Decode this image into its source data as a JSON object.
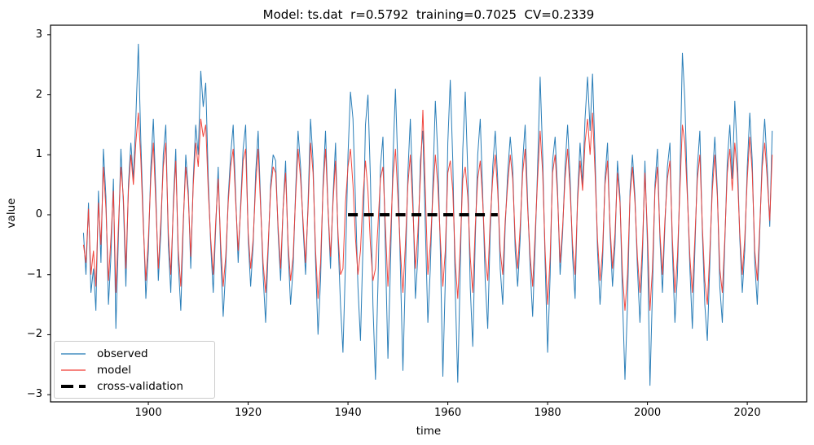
{
  "figure": {
    "title": "Model: ts.dat  r=0.5792  training=0.7025  CV=0.2339",
    "background_color": "#ffffff",
    "frame_color": "#000000"
  },
  "axes": {
    "xlabel": "time",
    "ylabel": "value",
    "xlim": [
      1880.4,
      2031.9
    ],
    "ylim": [
      -3.12,
      3.16
    ],
    "xticks": [
      1900,
      1920,
      1940,
      1960,
      1980,
      2000,
      2020
    ],
    "xtick_labels": [
      "1900",
      "1920",
      "1940",
      "1960",
      "1980",
      "2000",
      "2020"
    ],
    "yticks": [
      3,
      2,
      1,
      0,
      -1,
      -2,
      -3
    ],
    "ytick_labels": [
      "3",
      "2",
      "1",
      "0",
      "−1",
      "−2",
      "−3"
    ],
    "grid": false
  },
  "legend": {
    "position": "lower left",
    "entries": [
      {
        "label": "observed",
        "color": "#1f77b4",
        "style": "solid",
        "width": 1.3
      },
      {
        "label": "model",
        "color": "#f03b33",
        "style": "solid",
        "width": 1.3
      },
      {
        "label": "cross-validation",
        "color": "#000000",
        "style": "dashed",
        "width": 4
      }
    ]
  },
  "chart_data": {
    "type": "line",
    "title": "Model: ts.dat  r=0.5792  training=0.7025  CV=0.2339",
    "xlabel": "time",
    "ylabel": "value",
    "xlim": [
      1880.4,
      2031.9
    ],
    "ylim": [
      -3.12,
      3.16
    ],
    "grid": false,
    "legend_position": "lower left",
    "stats": {
      "r": 0.5792,
      "training": 0.7025,
      "CV": 0.2339,
      "model_file": "ts.dat"
    },
    "x_start": 1887.0,
    "x_step": 0.5,
    "series": [
      {
        "name": "observed",
        "color": "#1f77b4",
        "linewidth": 1,
        "style": "solid",
        "values": [
          -0.3,
          -1.0,
          0.2,
          -1.3,
          -0.9,
          -1.6,
          0.4,
          -0.8,
          1.1,
          0.3,
          -1.5,
          -0.7,
          0.6,
          -1.9,
          -0.4,
          1.1,
          0.2,
          -1.2,
          0.5,
          1.2,
          0.6,
          1.6,
          2.85,
          1.2,
          -0.1,
          -1.4,
          -0.6,
          0.8,
          1.6,
          0.4,
          -1.1,
          -0.3,
          1.0,
          1.5,
          -0.5,
          -1.3,
          0.2,
          1.1,
          -0.8,
          -1.6,
          -0.2,
          1.0,
          0.4,
          -0.9,
          0.6,
          1.5,
          1.0,
          2.4,
          1.8,
          2.2,
          0.6,
          -0.5,
          -1.3,
          -0.2,
          0.8,
          -0.7,
          -1.7,
          -0.9,
          0.3,
          1.0,
          1.5,
          0.3,
          -0.8,
          0.2,
          1.1,
          1.5,
          -0.4,
          -1.2,
          -0.5,
          0.7,
          1.4,
          0.2,
          -1.0,
          -1.8,
          -0.6,
          0.5,
          1.0,
          0.9,
          -0.3,
          -1.1,
          0.1,
          0.9,
          -0.6,
          -1.5,
          -0.9,
          0.4,
          1.4,
          0.8,
          -0.2,
          -1.0,
          0.2,
          1.6,
          0.9,
          -0.8,
          -2.0,
          -1.1,
          0.5,
          1.4,
          0.1,
          -0.9,
          0.3,
          1.2,
          -0.4,
          -1.5,
          -2.3,
          -0.8,
          1.0,
          2.05,
          1.6,
          0.2,
          -1.2,
          -2.1,
          -0.5,
          1.5,
          2.0,
          0.6,
          -1.5,
          -2.75,
          -1.2,
          0.8,
          1.3,
          -0.6,
          -2.4,
          -0.9,
          0.9,
          2.1,
          0.8,
          -0.9,
          -2.6,
          -1.0,
          0.7,
          1.6,
          0.3,
          -1.4,
          -0.7,
          0.9,
          1.4,
          -0.2,
          -1.8,
          -0.9,
          0.5,
          1.9,
          1.0,
          -0.6,
          -2.7,
          -1.1,
          1.2,
          2.25,
          0.9,
          -1.3,
          -2.8,
          -0.9,
          1.1,
          2.05,
          0.7,
          -1.2,
          -2.2,
          -0.4,
          1.0,
          1.6,
          0.3,
          -1.1,
          -1.9,
          -0.3,
          0.8,
          1.4,
          0.6,
          -0.9,
          -1.5,
          -0.2,
          0.7,
          1.3,
          0.8,
          -0.6,
          -1.2,
          -0.4,
          0.9,
          1.5,
          0.2,
          -0.9,
          -1.7,
          -0.5,
          0.8,
          2.3,
          1.0,
          -0.8,
          -2.3,
          -1.0,
          0.9,
          1.3,
          0.4,
          -1.0,
          -0.3,
          0.8,
          1.5,
          0.6,
          -0.7,
          -1.4,
          0.3,
          1.2,
          0.5,
          1.6,
          2.3,
          1.4,
          2.35,
          1.0,
          -0.6,
          -1.5,
          -0.8,
          0.6,
          1.2,
          -0.3,
          -1.2,
          -0.5,
          0.9,
          0.3,
          -1.4,
          -2.75,
          -1.5,
          0.4,
          1.0,
          0.3,
          -0.9,
          -1.8,
          -0.7,
          0.9,
          -0.5,
          -2.85,
          -1.3,
          0.5,
          1.1,
          -0.4,
          -1.3,
          -0.2,
          0.8,
          1.2,
          -0.6,
          -1.8,
          -1.0,
          0.6,
          2.7,
          1.9,
          0.4,
          -0.9,
          -1.9,
          -0.6,
          0.8,
          1.4,
          -0.3,
          -1.5,
          -2.1,
          -0.8,
          0.6,
          1.3,
          0.4,
          -1.2,
          -1.8,
          -0.5,
          0.9,
          1.5,
          0.6,
          1.9,
          1.0,
          -0.4,
          -1.3,
          -0.6,
          0.8,
          1.7,
          0.9,
          -0.8,
          -1.5,
          -0.3,
          1.0,
          1.6,
          0.8,
          -0.2,
          1.4
        ]
      },
      {
        "name": "model",
        "color": "#f03b33",
        "linewidth": 1,
        "style": "solid",
        "values": [
          -0.5,
          -0.8,
          0.1,
          -1.0,
          -0.6,
          -1.2,
          0.2,
          -0.5,
          0.8,
          0.1,
          -1.1,
          -0.4,
          0.4,
          -1.3,
          -0.2,
          0.8,
          0.3,
          -0.9,
          0.4,
          1.0,
          0.5,
          1.2,
          1.7,
          0.9,
          -0.2,
          -1.1,
          -0.4,
          0.6,
          1.2,
          0.2,
          -0.9,
          -0.1,
          0.8,
          1.2,
          -0.3,
          -1.0,
          0.1,
          0.9,
          -0.6,
          -1.2,
          -0.1,
          0.8,
          0.3,
          -0.7,
          0.5,
          1.2,
          0.8,
          1.6,
          1.3,
          1.5,
          0.4,
          -0.4,
          -1.0,
          -0.1,
          0.6,
          -0.5,
          -1.2,
          -0.7,
          0.2,
          0.8,
          1.1,
          0.2,
          -0.6,
          0.1,
          0.9,
          1.1,
          -0.3,
          -0.9,
          -0.4,
          0.5,
          1.1,
          0.1,
          -0.8,
          -1.3,
          -0.5,
          0.4,
          0.8,
          0.7,
          -0.2,
          -0.9,
          0.1,
          0.7,
          -0.5,
          -1.1,
          -0.7,
          0.3,
          1.1,
          0.6,
          -0.1,
          -0.8,
          0.1,
          1.2,
          0.7,
          -0.6,
          -1.4,
          -0.8,
          0.4,
          1.1,
          0.1,
          -0.7,
          0.2,
          0.9,
          -0.3,
          -1.0,
          -0.9,
          0.2,
          0.8,
          1.1,
          0.5,
          -0.4,
          -1.0,
          -0.6,
          0.3,
          0.9,
          0.4,
          -0.5,
          -1.1,
          -0.9,
          -0.2,
          0.6,
          0.8,
          -0.2,
          -1.2,
          -0.4,
          0.6,
          1.1,
          0.3,
          -0.6,
          -1.3,
          -0.5,
          0.5,
          1.0,
          0.1,
          -0.9,
          -0.3,
          0.6,
          1.75,
          0.4,
          -1.0,
          -0.5,
          0.3,
          1.0,
          0.5,
          -0.4,
          -1.2,
          -0.6,
          0.7,
          0.9,
          0.4,
          -0.8,
          -1.4,
          -0.5,
          0.6,
          0.8,
          0.3,
          -0.7,
          -1.3,
          -0.2,
          0.6,
          0.9,
          0.2,
          -0.7,
          -1.1,
          -0.1,
          0.6,
          1.0,
          0.4,
          -0.6,
          -1.0,
          -0.1,
          0.5,
          1.0,
          0.6,
          -0.4,
          -0.9,
          -0.2,
          0.7,
          1.1,
          0.1,
          -0.7,
          -1.2,
          -0.3,
          0.6,
          1.4,
          0.7,
          -0.6,
          -1.5,
          -0.7,
          0.7,
          1.0,
          0.3,
          -0.8,
          -0.2,
          0.6,
          1.1,
          0.4,
          -0.5,
          -1.0,
          0.2,
          0.9,
          0.4,
          1.2,
          1.6,
          1.0,
          1.7,
          0.7,
          -0.4,
          -1.1,
          -0.6,
          0.5,
          0.9,
          -0.2,
          -0.9,
          -0.3,
          0.7,
          0.2,
          -1.0,
          -1.6,
          -1.0,
          0.3,
          0.8,
          0.2,
          -0.7,
          -1.3,
          -0.5,
          0.7,
          -0.3,
          -1.6,
          -0.9,
          0.4,
          0.8,
          -0.3,
          -1.0,
          -0.1,
          0.6,
          0.9,
          -0.4,
          -1.3,
          -0.7,
          0.4,
          1.5,
          1.2,
          0.3,
          -0.7,
          -1.3,
          -0.4,
          0.6,
          1.0,
          -0.2,
          -1.1,
          -1.5,
          -0.6,
          0.4,
          1.0,
          0.3,
          -0.9,
          -1.3,
          -0.4,
          0.7,
          1.1,
          0.4,
          1.2,
          0.7,
          -0.3,
          -1.0,
          -0.4,
          0.6,
          1.3,
          0.7,
          -0.6,
          -1.1,
          -0.2,
          0.8,
          1.2,
          0.6,
          -0.1,
          1.0
        ]
      },
      {
        "name": "cross-validation",
        "color": "#000000",
        "linewidth": 4,
        "style": "dashed",
        "x": [
          1940,
          1970
        ],
        "y": [
          0,
          0
        ]
      }
    ]
  }
}
